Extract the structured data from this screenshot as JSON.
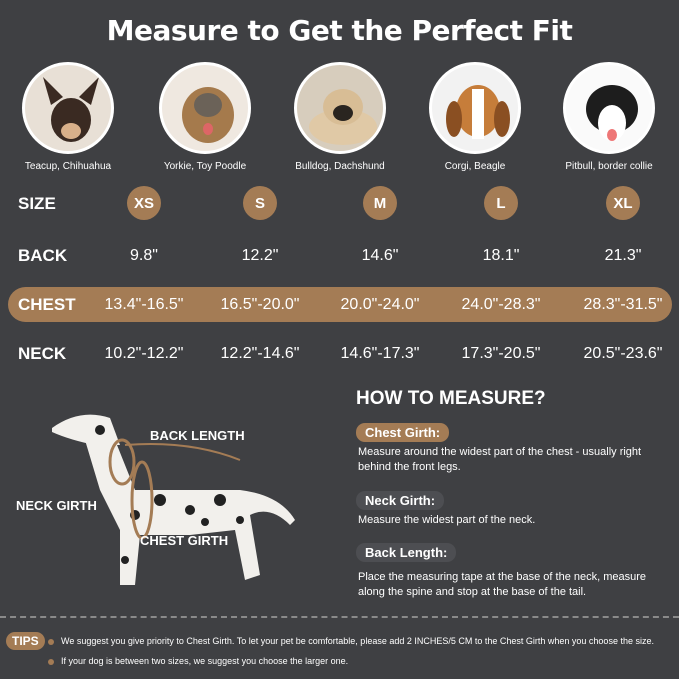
{
  "title": "Measure to Get the Perfect Fit",
  "breeds": [
    "Teacup, Chihuahua",
    "Yorkie, Toy Poodle",
    "Bulldog, Dachshund",
    "Corgi, Beagle",
    "Pitbull, border collie"
  ],
  "table": {
    "size_label": "SIZE",
    "sizes": [
      "XS",
      "S",
      "M",
      "L",
      "XL"
    ],
    "back_label": "BACK",
    "back": [
      "9.8\"",
      "12.2\"",
      "14.6\"",
      "18.1\"",
      "21.3\""
    ],
    "chest_label": "CHEST",
    "chest": [
      "13.4\"-16.5\"",
      "16.5\"-20.0\"",
      "20.0\"-24.0\"",
      "24.0\"-28.3\"",
      "28.3\"-31.5\""
    ],
    "neck_label": "NECK",
    "neck": [
      "10.2\"-12.2\"",
      "12.2\"-14.6\"",
      "14.6\"-17.3\"",
      "17.3\"-20.5\"",
      "20.5\"-23.6\""
    ]
  },
  "diagram": {
    "back_length": "BACK LENGTH",
    "neck_girth": "NECK GIRTH",
    "chest_girth": "CHEST GIRTH"
  },
  "how": {
    "title": "HOW TO MEASURE?",
    "chest_title": "Chest Girth:",
    "chest_desc": "Measure around the widest part of the chest - usually right behind the front legs.",
    "neck_title": "Neck Girth:",
    "neck_desc": "Measure the widest part of the neck.",
    "back_title": "Back Length:",
    "back_desc": "Place the measuring tape at the base of the neck, measure along the spine and stop at the base of the tail."
  },
  "tips": {
    "label": "TIPS",
    "items": [
      "We suggest you give priority to Chest Girth. To let your pet be comfortable, please add 2 INCHES/5 CM to the Chest Girth when you choose the size.",
      "If your dog is between two sizes, we suggest you choose the larger one."
    ]
  },
  "colors": {
    "background": "#3f4043",
    "accent": "#a47c55"
  }
}
